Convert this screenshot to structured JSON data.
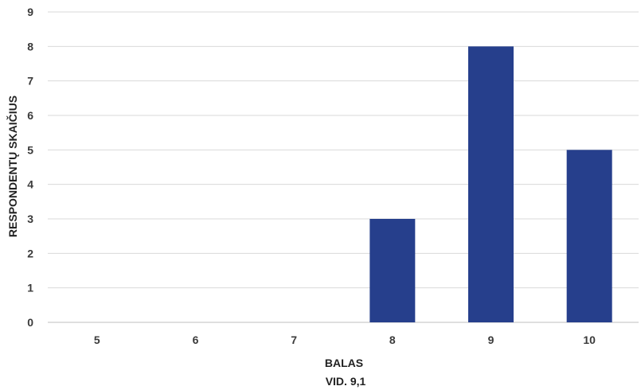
{
  "chart_data": {
    "type": "bar",
    "categories": [
      "5",
      "6",
      "7",
      "8",
      "9",
      "10"
    ],
    "values": [
      0,
      0,
      0,
      3,
      8,
      5
    ],
    "xlabel": "BALAS",
    "x_sublabel": "VID. 9,1",
    "ylabel": "RESPONDENTŲ SKAIČIUS",
    "ylim": [
      0,
      9
    ],
    "yticks": [
      0,
      1,
      2,
      3,
      4,
      5,
      6,
      7,
      8,
      9
    ],
    "grid": true,
    "bar_color": "#263F8C"
  }
}
